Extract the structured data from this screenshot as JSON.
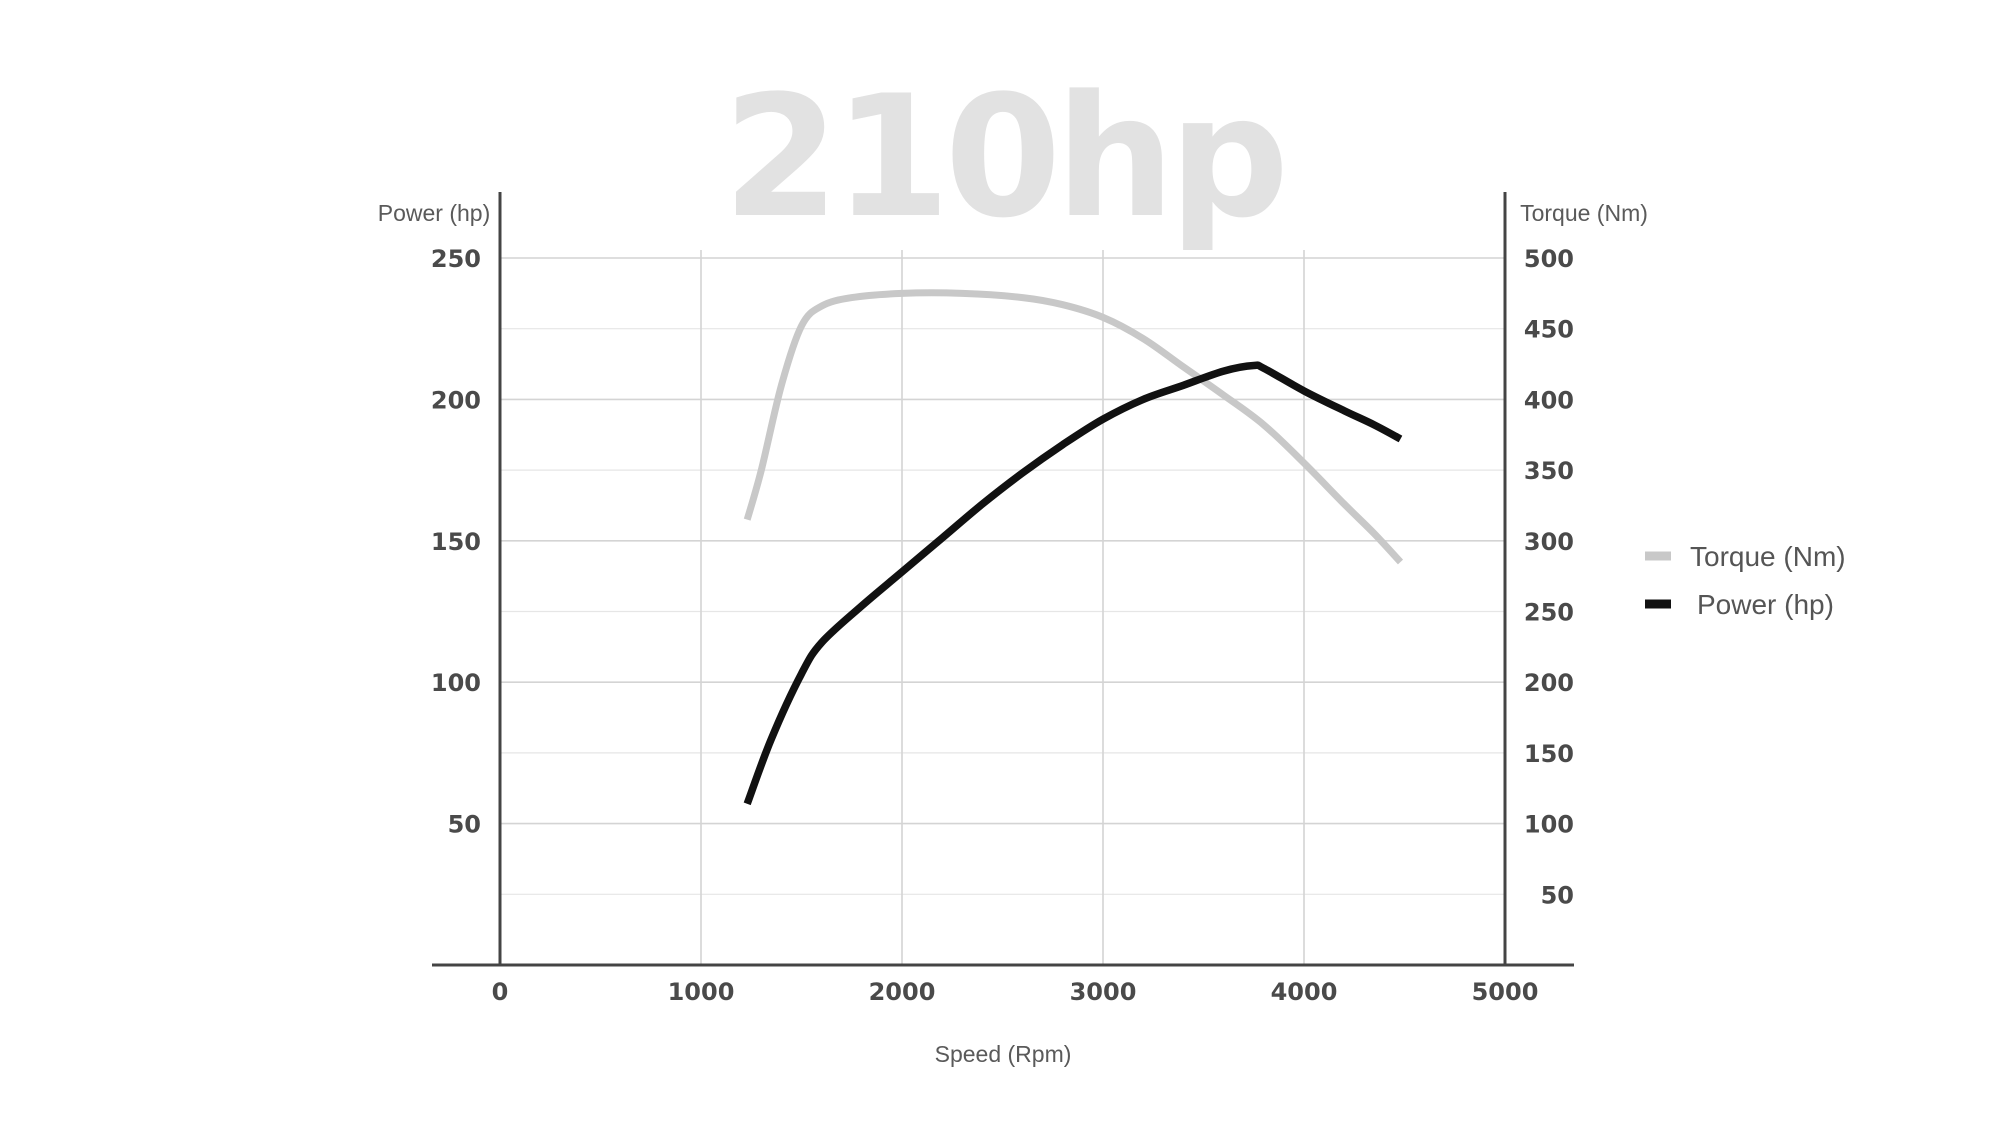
{
  "chart_data": {
    "type": "line",
    "title": "210hp",
    "xlabel": "Speed (Rpm)",
    "ylabel_left": "Power (hp)",
    "ylabel_right": "Torque (Nm)",
    "xlim": [
      0,
      5000
    ],
    "ylim_left": [
      0,
      250
    ],
    "ylim_right": [
      0,
      500
    ],
    "x_ticks": [
      "0",
      "1000",
      "2000",
      "3000",
      "4000",
      "5000"
    ],
    "y_ticks_left": [
      "50",
      "100",
      "150",
      "200",
      "250"
    ],
    "y_ticks_right": [
      "50",
      "100",
      "150",
      "200",
      "250",
      "300",
      "350",
      "400",
      "450",
      "500"
    ],
    "grid": true,
    "legend_position": "right",
    "series": [
      {
        "name": "Torque (Nm)",
        "axis": "right",
        "color": "#c8c8c8",
        "points": [
          [
            1230,
            315
          ],
          [
            1300,
            350
          ],
          [
            1400,
            410
          ],
          [
            1500,
            452
          ],
          [
            1600,
            466
          ],
          [
            1750,
            472
          ],
          [
            2000,
            475
          ],
          [
            2300,
            475
          ],
          [
            2600,
            472
          ],
          [
            2800,
            467
          ],
          [
            3000,
            458
          ],
          [
            3200,
            443
          ],
          [
            3400,
            423
          ],
          [
            3600,
            403
          ],
          [
            3800,
            382
          ],
          [
            4000,
            355
          ],
          [
            4200,
            326
          ],
          [
            4350,
            305
          ],
          [
            4480,
            285
          ]
        ]
      },
      {
        "name": "Power (hp)",
        "axis": "left",
        "color": "#111111",
        "points": [
          [
            1230,
            57
          ],
          [
            1350,
            80
          ],
          [
            1500,
            103
          ],
          [
            1600,
            114
          ],
          [
            1800,
            127
          ],
          [
            2000,
            139
          ],
          [
            2200,
            151
          ],
          [
            2400,
            163
          ],
          [
            2600,
            174
          ],
          [
            2800,
            184
          ],
          [
            3000,
            193
          ],
          [
            3200,
            200
          ],
          [
            3400,
            205
          ],
          [
            3600,
            210
          ],
          [
            3750,
            212
          ],
          [
            3800,
            211
          ],
          [
            4000,
            203
          ],
          [
            4200,
            196
          ],
          [
            4350,
            191
          ],
          [
            4480,
            186
          ]
        ]
      }
    ]
  }
}
